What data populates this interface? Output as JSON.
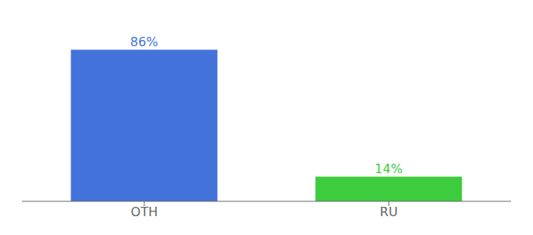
{
  "chart_data": {
    "type": "bar",
    "categories": [
      "OTH",
      "RU"
    ],
    "values": [
      86,
      14
    ],
    "value_labels": [
      "86%",
      "14%"
    ],
    "colors": [
      "#4472db",
      "#3dcc3d"
    ],
    "ylim": [
      0,
      100
    ],
    "data_labels": true,
    "tick_labels": "x",
    "grid": false
  }
}
